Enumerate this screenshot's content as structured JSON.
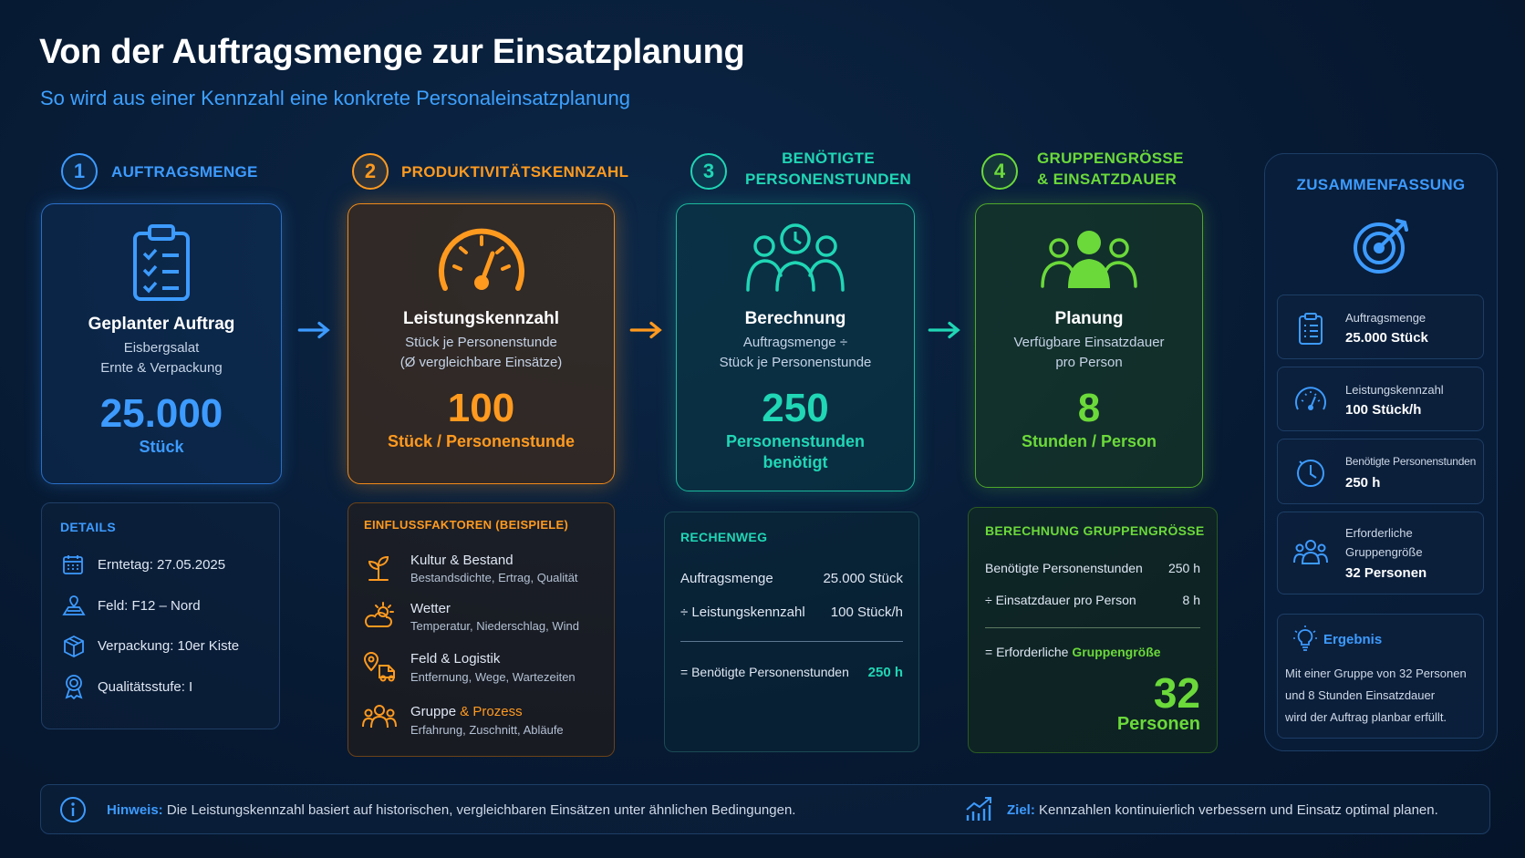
{
  "title": "Von der Auftragsmenge zur Einsatzplanung",
  "subtitle": "So wird aus einer Kennzahl eine konkrete Personaleinsatzplanung",
  "steps": [
    {
      "num": "1",
      "label": "AUFTRAGSMENGE",
      "card_title": "Geplanter Auftrag",
      "desc1": "Eisbergsalat",
      "desc2": "Ernte & Verpackung",
      "value": "25.000",
      "unit": "Stück",
      "color": "#3d9bff"
    },
    {
      "num": "2",
      "label": "PRODUKTIVITÄTSKENNZAHL",
      "card_title": "Leistungskennzahl",
      "desc1": "Stück je Personenstunde",
      "desc2": "(Ø vergleichbare Einsätze)",
      "value": "100",
      "unit": "Stück / Personenstunde",
      "color": "#ff9a1f"
    },
    {
      "num": "3",
      "label1": "BENÖTIGTE",
      "label2": "PERSONENSTUNDEN",
      "card_title": "Berechnung",
      "desc1": "Auftragsmenge ÷",
      "desc2": "Stück je Personenstunde",
      "value": "250",
      "unit1": "Personenstunden",
      "unit2": "benötigt",
      "color": "#20d6b5"
    },
    {
      "num": "4",
      "label1": "GRUPPENGRÖSSE",
      "label2": "& EINSATZDAUER",
      "card_title": "Planung",
      "desc1": "Verfügbare Einsatzdauer",
      "desc2": "pro Person",
      "value": "8",
      "unit": "Stunden / Person",
      "color": "#6bd93a"
    }
  ],
  "details": {
    "header": "DETAILS",
    "items": [
      {
        "icon": "calendar-icon",
        "text": "Erntetag: 27.05.2025"
      },
      {
        "icon": "field-icon",
        "text": "Feld: F12 – Nord"
      },
      {
        "icon": "box-icon",
        "text": "Verpackung: 10er Kiste"
      },
      {
        "icon": "award-icon",
        "text": "Qualitätsstufe: I"
      }
    ]
  },
  "factors": {
    "header": "EINFLUSSFAKTOREN (BEISPIELE)",
    "items": [
      {
        "icon": "plant-icon",
        "title": "Kultur & Bestand",
        "desc": "Bestandsdichte, Ertrag, Qualität"
      },
      {
        "icon": "weather-icon",
        "title": "Wetter",
        "desc": "Temperatur, Niederschlag, Wind"
      },
      {
        "icon": "logistics-icon",
        "title": "Feld & Logistik",
        "desc": "Entfernung, Wege, Wartezeiten"
      },
      {
        "icon": "group-icon",
        "title": "Gruppe",
        "title_accent": "& Prozess",
        "desc": "Erfahrung, Zuschnitt, Abläufe"
      }
    ]
  },
  "rechenweg": {
    "header": "RECHENWEG",
    "rows": [
      {
        "label": "Auftragsmenge",
        "value": "25.000 Stück"
      },
      {
        "label": "÷ Leistungskennzahl",
        "value": "100 Stück/h"
      }
    ],
    "result_label": "= Benötigte Personenstunden",
    "result_value": "250 h"
  },
  "gruppe": {
    "header": "BERECHNUNG GRUPPENGRÖSSE",
    "rows": [
      {
        "label": "Benötigte Personenstunden",
        "value": "250 h"
      },
      {
        "label": "÷ Einsatzdauer pro Person",
        "value": "8 h"
      }
    ],
    "result_prefix": "= Erforderliche ",
    "result_accent": "Gruppengröße",
    "result_value": "32",
    "result_unit": "Personen"
  },
  "summary": {
    "header": "ZUSAMMENFASSUNG",
    "items": [
      {
        "icon": "clipboard-icon",
        "label": "Auftragsmenge",
        "value": "25.000 Stück"
      },
      {
        "icon": "gauge-icon",
        "label": "Leistungskennzahl",
        "value": "100 Stück/h"
      },
      {
        "icon": "clock-icon",
        "label": "Benötigte Personenstunden",
        "value": "250 h"
      },
      {
        "icon": "people-icon",
        "label1": "Erforderliche",
        "label2": "Gruppengröße",
        "value": "32 Personen"
      }
    ],
    "result_header": "Ergebnis",
    "result_lines": [
      "Mit einer Gruppe von 32 Personen",
      "und 8 Stunden Einsatzdauer",
      "wird der Auftrag planbar erfüllt."
    ]
  },
  "footer": {
    "hint_label": "Hinweis:",
    "hint_text": " Die Leistungskennzahl basiert auf historischen, vergleichbaren Einsätzen unter ähnlichen Bedingungen.",
    "goal_label": "Ziel:",
    "goal_text": " Kennzahlen kontinuierlich verbessern und Einsatz optimal planen."
  }
}
